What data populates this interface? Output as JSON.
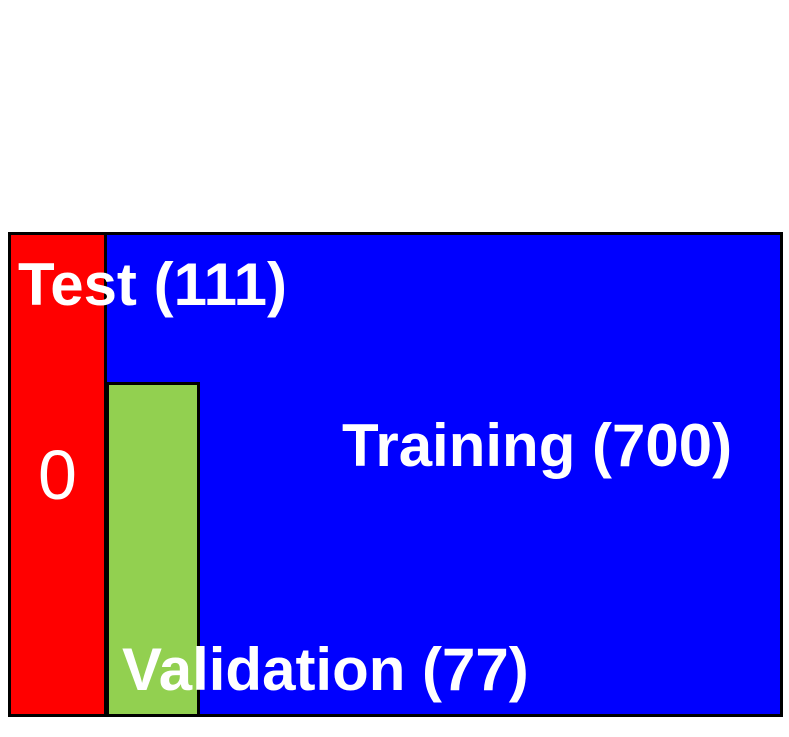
{
  "segments": {
    "training": {
      "label": "Training (700)",
      "color": "#0000ff"
    },
    "test": {
      "label": "Test (111)",
      "color": "#ff0000"
    },
    "validation": {
      "label": "Validation (77)",
      "color": "#92d050"
    }
  },
  "fold_index": "0",
  "colors": {
    "border": "#000000",
    "text": "#ffffff",
    "background": "#ffffff"
  }
}
